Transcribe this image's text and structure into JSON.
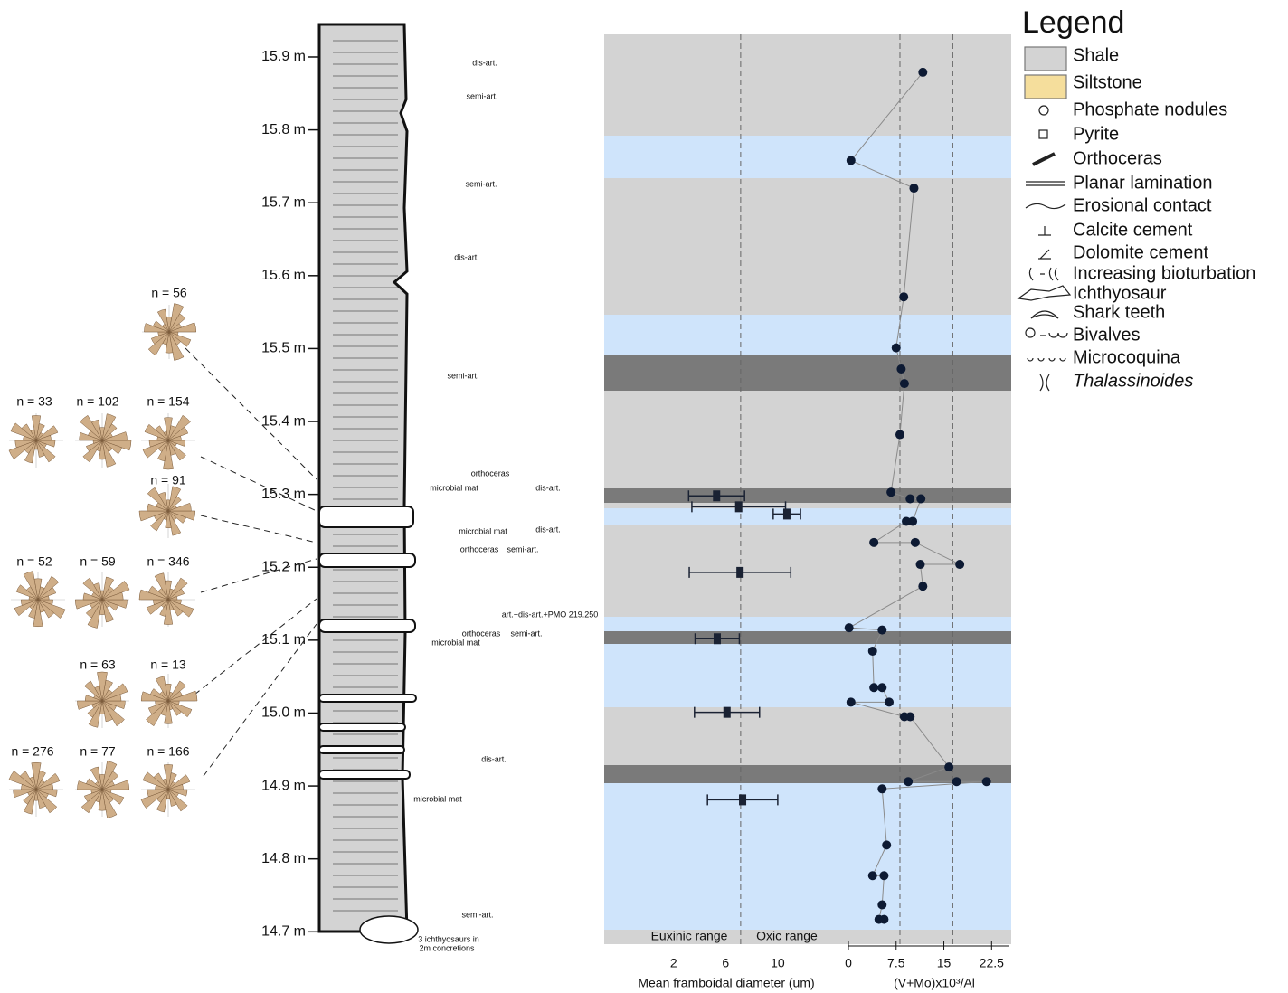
{
  "chart_data": [
    {
      "type": "strat-log",
      "ylim": [
        14.683,
        15.931
      ],
      "yticks": [
        {
          "value": 14.7,
          "label": "14.7 m"
        },
        {
          "value": 14.8,
          "label": "14.8 m"
        },
        {
          "value": 14.9,
          "label": "14.9 m"
        },
        {
          "value": 15.0,
          "label": "15.0 m"
        },
        {
          "value": 15.1,
          "label": "15.1 m"
        },
        {
          "value": 15.2,
          "label": "15.2 m"
        },
        {
          "value": 15.3,
          "label": "15.3 m"
        },
        {
          "value": 15.4,
          "label": "15.4 m"
        },
        {
          "value": 15.5,
          "label": "15.5 m"
        },
        {
          "value": 15.6,
          "label": "15.6 m"
        },
        {
          "value": 15.7,
          "label": "15.7 m"
        },
        {
          "value": 15.8,
          "label": "15.8 m"
        },
        {
          "value": 15.9,
          "label": "15.9 m"
        }
      ],
      "annotations": [
        "dis-art.",
        "semi-art.",
        "semi-art.",
        "dis-art.",
        "semi-art.",
        "orthoceras",
        "microbial mat",
        "dis-art.",
        "microbial mat",
        "dis-art.",
        "orthoceras",
        "semi-art.",
        "art.+dis-art.+PMO 219.250",
        "orthoceras",
        "semi-art.",
        "microbial mat",
        "dis-art.",
        "microbial mat",
        "3 ichthyosaurs in",
        "2m concretions",
        "semi-art."
      ],
      "rose_labels": [
        "n = 56",
        "n = 33",
        "n = 102",
        "n = 154",
        "n = 91",
        "n = 52",
        "n = 59",
        "n = 346",
        "n = 63",
        "n = 13",
        "n = 276",
        "n = 77",
        "n = 166"
      ]
    },
    {
      "type": "errorbar",
      "xlabel": "Mean framboidal diameter (um)",
      "xlim": [
        0,
        13.9
      ],
      "xticks": [
        2,
        6,
        10
      ],
      "ylim": [
        14.683,
        15.931
      ],
      "vlines": [
        7.15
      ],
      "annotations": [
        "Euxinic range",
        "Oxic range"
      ],
      "color": "#1a2233",
      "values": [
        5.3,
        7.0,
        10.7,
        7.1,
        5.35,
        6.1,
        7.3
      ],
      "errors": [
        2.15,
        3.6,
        1.05,
        3.9,
        1.7,
        2.5,
        2.7
      ],
      "depth": [
        15.298,
        15.283,
        15.273,
        15.193,
        15.102,
        15.001,
        14.881
      ]
    },
    {
      "type": "scatter",
      "xlabel": "(V+Mo)x10³/Al",
      "xlim": [
        0,
        25.3
      ],
      "xticks": [
        0,
        7.5,
        15,
        22.5
      ],
      "ylim": [
        14.683,
        15.931
      ],
      "vlines": [
        8.1,
        16.4
      ],
      "color": "#0d1a33",
      "line_color": "#8a8a8a",
      "values": [
        11.7,
        0.4,
        10.3,
        8.7,
        7.5,
        8.3,
        8.8,
        8.1,
        6.7,
        9.7,
        11.4,
        10.1,
        9.1,
        4.0,
        10.5,
        17.5,
        11.3,
        11.7,
        0.1,
        5.3,
        3.8,
        4.0,
        5.3,
        6.4,
        0.4,
        8.8,
        9.7,
        15.8,
        9.4,
        17.0,
        21.7,
        5.3,
        6.0,
        3.8,
        5.6,
        5.3,
        4.8,
        5.6
      ],
      "depth": [
        15.879,
        15.758,
        15.72,
        15.571,
        15.501,
        15.472,
        15.452,
        15.382,
        15.303,
        15.294,
        15.294,
        15.263,
        15.263,
        15.234,
        15.234,
        15.204,
        15.204,
        15.174,
        15.117,
        15.114,
        15.085,
        15.035,
        15.035,
        15.015,
        15.015,
        14.995,
        14.995,
        14.926,
        14.906,
        14.906,
        14.906,
        14.896,
        14.819,
        14.777,
        14.777,
        14.737,
        14.717,
        14.717
      ]
    }
  ],
  "legend": {
    "title": "Legend",
    "items": [
      "Shale",
      "Siltstone",
      "Phosphate nodules",
      "Pyrite",
      "Orthoceras",
      "Planar lamination",
      "Erosional contact",
      "Calcite cement",
      "Dolomite cement",
      "Increasing bioturbation",
      "Ichthyosaur",
      "Shark teeth",
      "Bivalves",
      "Microcoquina",
      "Thalassinoides"
    ]
  }
}
